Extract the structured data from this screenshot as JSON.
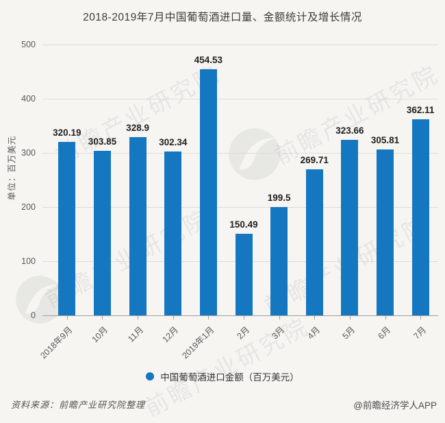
{
  "title": "2018-2019年7月中国葡萄酒进口量、金额统计及增长情况",
  "chart_data": {
    "type": "bar",
    "title": "2018-2019年7月中国葡萄酒进口量、金额统计及增长情况",
    "categories": [
      "2018年9月",
      "10月",
      "11月",
      "12月",
      "2019年1月",
      "2月",
      "3月",
      "4月",
      "5月",
      "6月",
      "7月"
    ],
    "values": [
      320.19,
      303.85,
      328.9,
      302.34,
      454.53,
      150.49,
      199.5,
      269.71,
      323.66,
      305.81,
      362.11
    ],
    "value_labels": [
      "320.19",
      "303.85",
      "328.9",
      "302.34",
      "454.53",
      "150.49",
      "199.5",
      "269.71",
      "323.66",
      "305.81",
      "362.11"
    ],
    "series_name": "中国葡萄酒进口金额（百万美元）",
    "xlabel": "",
    "ylabel": "单位：百万美元",
    "ylim": [
      0,
      500
    ],
    "yticks": [
      0,
      100,
      200,
      300,
      400,
      500
    ],
    "grid": true,
    "legend_position": "bottom",
    "bar_color": "#1577c0"
  },
  "legend": {
    "marker": "circle-icon",
    "marker_color": "#1577c0",
    "label": "中国葡萄酒进口金额（百万美元）"
  },
  "footer": {
    "source": "资料来源：前瞻产业研究院整理",
    "credit": "@前瞻经济学人APP"
  },
  "watermark": {
    "text": "前瞻产业研究院",
    "logo": "qianzhan-logo"
  },
  "colors": {
    "bar": "#1577c0",
    "background": "#f6f5f2",
    "grid": "#dddcd9",
    "axis_line": "#9e9e9c",
    "tick_text": "#595959",
    "value_label_text": "#1f1f1f",
    "title_text": "#3c3c3c",
    "footer_text": "#4d4d4d",
    "watermark": "#8c8c8c"
  }
}
